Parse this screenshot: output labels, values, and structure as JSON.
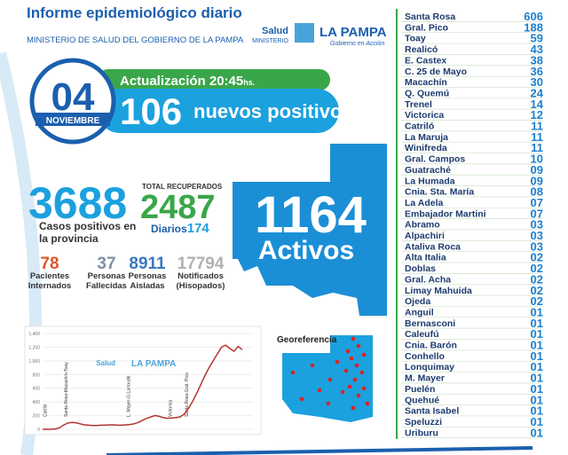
{
  "header": {
    "title": "Informe epidemiológico diario",
    "subtitle": "MINISTERIO DE SALUD DEL GOBIERNO DE LA PAMPA",
    "logo": {
      "salud": "Salud",
      "ministerio": "MINISTERIO",
      "province": "LA PAMPA",
      "slogan": "Gobierno en Acción"
    }
  },
  "update": {
    "day": "04",
    "month": "NOVIEMBRE",
    "label": "Actualización 20:45",
    "unit": "hs.",
    "new_count": "106",
    "new_label": "nuevos positivos"
  },
  "totals": {
    "cases": "3688",
    "cases_label": "Casos positivos en la provincia",
    "recovered_label": "TOTAL RECUPERADOS",
    "recovered": "2487",
    "daily_label": "Diarios",
    "daily": "174",
    "active": "1164",
    "active_label": "Activos"
  },
  "stats": [
    {
      "value": "78",
      "label": "Pacientes Internados",
      "color": "#e0552b"
    },
    {
      "value": "37",
      "label": "Personas Fallecidas",
      "color": "#7f8fa6"
    },
    {
      "value": "8911",
      "label": "Personas Aisladas",
      "color": "#3a78c2"
    },
    {
      "value": "17794",
      "label": "Notificados (Hisopados)",
      "color": "#b0b0b0"
    }
  ],
  "map_label": "Georeferencia",
  "trend": {
    "type": "line",
    "color": "#b5332e",
    "ylim": [
      0,
      1400
    ],
    "yticks": [
      0,
      {
        "value": 200,
        "label": "200"
      },
      {
        "value": 400,
        "label": "400"
      },
      {
        "value": 600,
        "label": "600"
      },
      {
        "value": 800,
        "label": "800"
      },
      {
        "value": 1000,
        "label": "1,000"
      },
      {
        "value": 1200,
        "label": "1,200"
      },
      {
        "value": 1400,
        "label": "1,400"
      }
    ],
    "values": [
      0,
      0,
      0,
      5,
      20,
      60,
      90,
      100,
      95,
      80,
      65,
      60,
      55,
      55,
      60,
      60,
      65,
      65,
      60,
      60,
      65,
      70,
      80,
      100,
      130,
      160,
      180,
      200,
      190,
      170,
      160,
      165,
      170,
      180,
      220,
      300,
      400,
      520,
      650,
      780,
      900,
      1000,
      1100,
      1200,
      1230,
      1180,
      1140,
      1210,
      1164
    ],
    "annotations": [
      "Catriló",
      "Santa Rosa-Macachín-Toay",
      "L. Mayer-G.Larroudé",
      "Victorica",
      "Santa Rosa-Gral. Pico"
    ]
  },
  "localities": [
    [
      "Santa Rosa",
      "606"
    ],
    [
      "Gral. Pico",
      "188"
    ],
    [
      "Toay",
      "59"
    ],
    [
      "Realicó",
      "43"
    ],
    [
      "E. Castex",
      "38"
    ],
    [
      "C. 25 de Mayo",
      "36"
    ],
    [
      "Macachín",
      "30"
    ],
    [
      "Q. Quemú",
      "24"
    ],
    [
      "Trenel",
      "14"
    ],
    [
      "Victorica",
      "12"
    ],
    [
      "Catriló",
      "11"
    ],
    [
      "La Maruja",
      "11"
    ],
    [
      "Winifreda",
      "11"
    ],
    [
      "Gral. Campos",
      "10"
    ],
    [
      "Guatraché",
      "09"
    ],
    [
      "La Humada",
      "09"
    ],
    [
      "Cnia. Sta. María",
      "08"
    ],
    [
      "La Adela",
      "07"
    ],
    [
      "Embajador Martini",
      "07"
    ],
    [
      "Abramo",
      "03"
    ],
    [
      "Alpachiri",
      "03"
    ],
    [
      "Ataliva Roca",
      "03"
    ],
    [
      "Alta Italia",
      "02"
    ],
    [
      "Doblas",
      "02"
    ],
    [
      "Gral. Acha",
      "02"
    ],
    [
      "Limay Mahuida",
      "02"
    ],
    [
      "Ojeda",
      "02"
    ],
    [
      "Anguil",
      "01"
    ],
    [
      "Bernasconi",
      "01"
    ],
    [
      "Caleufú",
      "01"
    ],
    [
      "Cnia. Barón",
      "01"
    ],
    [
      "Conhello",
      "01"
    ],
    [
      "Lonquimay",
      "01"
    ],
    [
      "M. Mayer",
      "01"
    ],
    [
      "Puelén",
      "01"
    ],
    [
      "Quehué",
      "01"
    ],
    [
      "Santa Isabel",
      "01"
    ],
    [
      "Speluzzi",
      "01"
    ],
    [
      "Uriburu",
      "01"
    ]
  ]
}
